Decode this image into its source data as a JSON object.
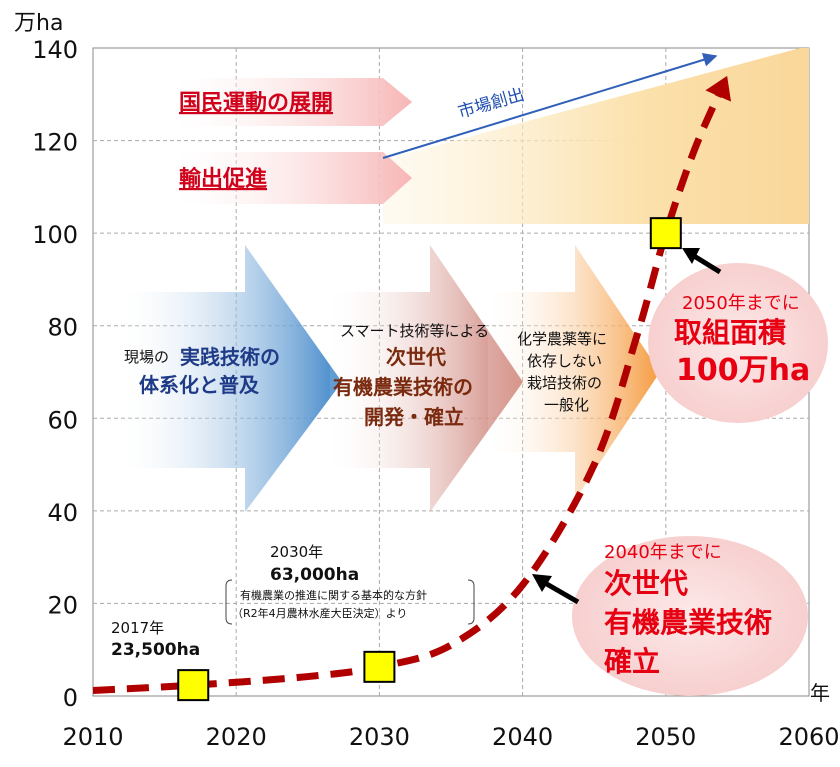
{
  "chart_data": {
    "type": "line",
    "y_unit": "万ha",
    "x_unit": "年",
    "xlim": [
      2010,
      2060
    ],
    "ylim": [
      0,
      140
    ],
    "x_ticks": [
      2010,
      2020,
      2030,
      2040,
      2050,
      2060
    ],
    "y_ticks": [
      0,
      20,
      40,
      60,
      80,
      100,
      120,
      140
    ],
    "grid": true,
    "series": [
      {
        "values": [
          [
            2010,
            1.2
          ],
          [
            2017,
            2.35
          ],
          [
            2025,
            4.2
          ],
          [
            2030,
            6.3
          ],
          [
            2035,
            11
          ],
          [
            2040,
            24
          ],
          [
            2045,
            50
          ],
          [
            2048,
            78
          ],
          [
            2050,
            100
          ],
          [
            2052,
            118
          ],
          [
            2054,
            132
          ]
        ]
      }
    ],
    "markers": [
      {
        "x": 2017,
        "y": 2.35
      },
      {
        "x": 2030,
        "y": 6.3
      },
      {
        "x": 2050,
        "y": 100
      }
    ],
    "annotations": {
      "a2017_year": "2017年",
      "a2017_value": "23,500ha",
      "a2030_year": "2030年",
      "a2030_value": "63,000ha",
      "a2030_note1": "有機農業の推進に関する基本的な方針",
      "a2030_note2": "（R2年4月農林水産大臣決定）より",
      "a2040_line1": "2040年までに",
      "a2040_line2": "次世代",
      "a2040_line3": "有機農業技術",
      "a2040_line4": "確立",
      "a2050_line1": "2050年までに",
      "a2050_line2": "取組面積",
      "a2050_line3": "100万ha"
    },
    "phases": {
      "national_movement": "国民運動の展開",
      "export": "輸出促進",
      "market": "市場創出",
      "arrow1_pre": "現場の",
      "arrow1_hl1": "実践技術の",
      "arrow1_hl2": "体系化と普及",
      "arrow2_pre": "スマート技術等による",
      "arrow2_hl1": "次世代",
      "arrow2_hl2": "有機農業技術の",
      "arrow2_hl3": "開発・確立",
      "arrow3_l1": "化学農薬等に",
      "arrow3_l2": "依存しない",
      "arrow3_l3": "栽培技術の",
      "arrow3_l4": "一般化"
    },
    "colors": {
      "curve": "#b00000",
      "marker_fill": "#ffff00",
      "phase_text_red": "#d0021b",
      "blue_text": "#1f3b88",
      "brown_text": "#7a2a0e",
      "accent_red": "#e60012",
      "market_line": "#3060b8"
    }
  }
}
